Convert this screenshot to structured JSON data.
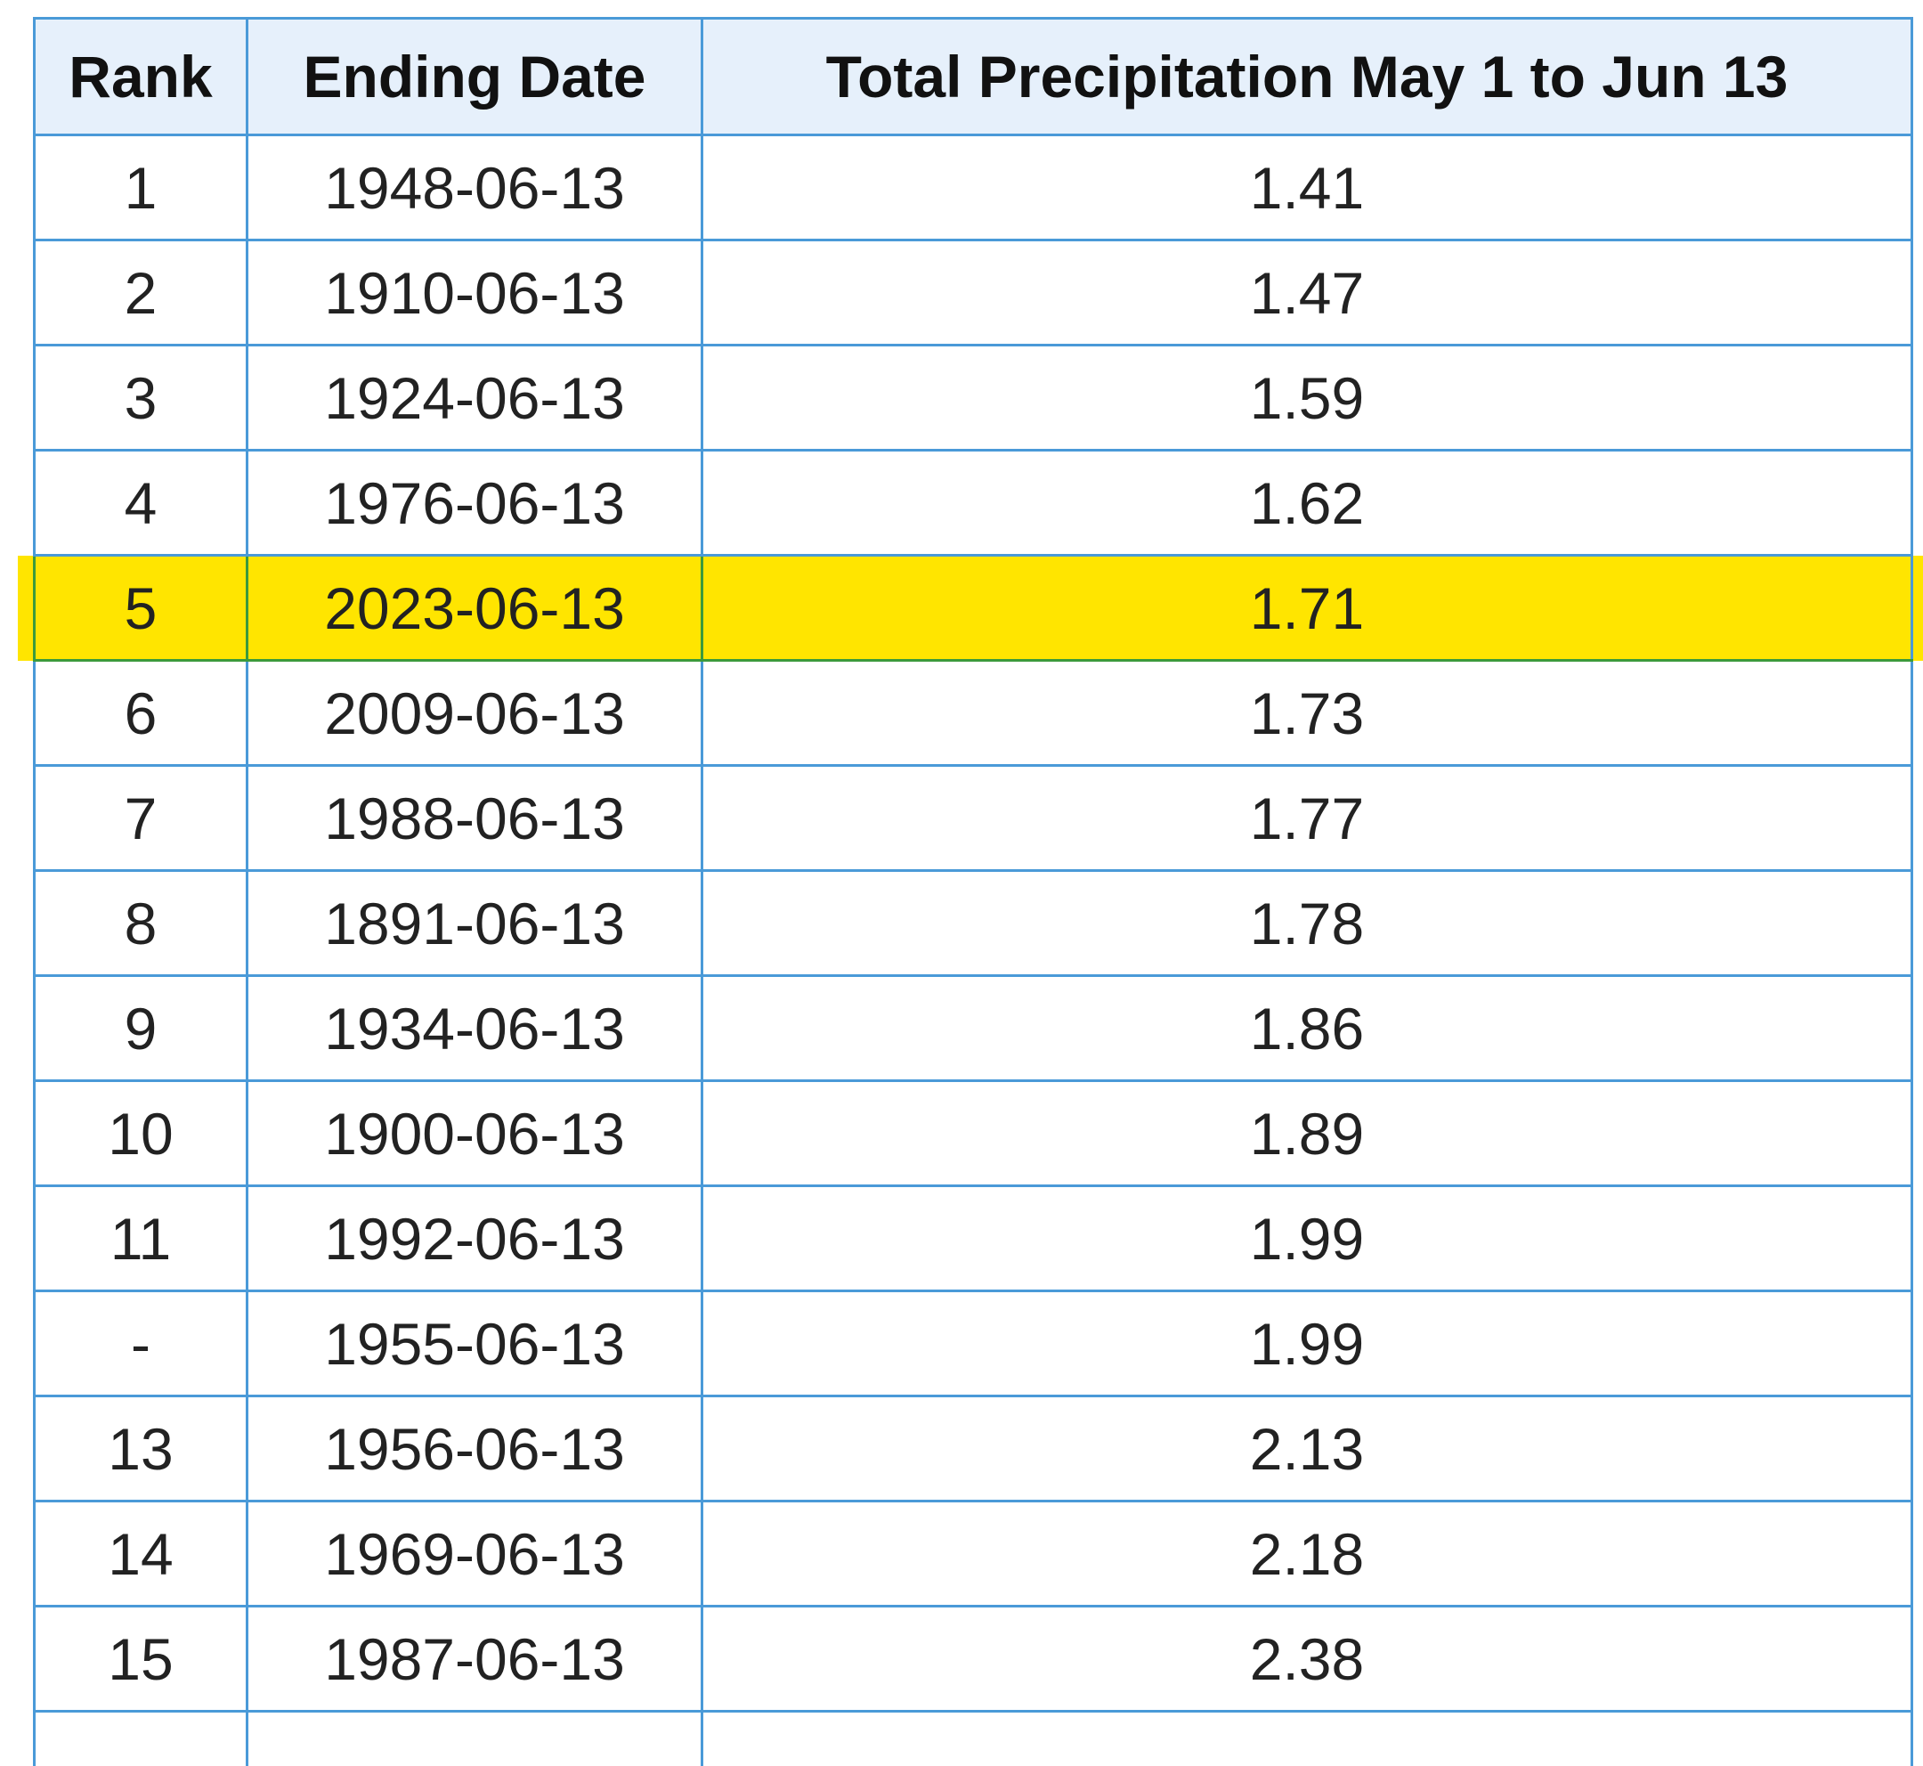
{
  "table": {
    "header": [
      "Rank",
      "Ending Date",
      "Total Precipitation May 1 to Jun 13"
    ],
    "rows": [
      [
        1,
        "1948-06-13",
        1.41
      ],
      [
        2,
        "1910-06-13",
        1.47
      ],
      [
        3,
        "1924-06-13",
        1.59
      ],
      [
        4,
        "1976-06-13",
        1.62
      ],
      [
        5,
        "2023-06-13",
        1.71
      ],
      [
        6,
        "2009-06-13",
        1.73
      ],
      [
        7,
        "1988-06-13",
        1.77
      ],
      [
        8,
        "1891-06-13",
        1.78
      ],
      [
        9,
        "1934-06-13",
        1.86
      ],
      [
        10,
        "1900-06-13",
        1.89
      ],
      [
        11,
        "1992-06-13",
        1.99
      ],
      [
        "-",
        "1955-06-13",
        1.99
      ],
      [
        13,
        "1956-06-13",
        2.13
      ],
      [
        14,
        "1969-06-13",
        2.18
      ],
      [
        15,
        "1987-06-13",
        2.38
      ]
    ],
    "highlighted_row": 4
  }
}
